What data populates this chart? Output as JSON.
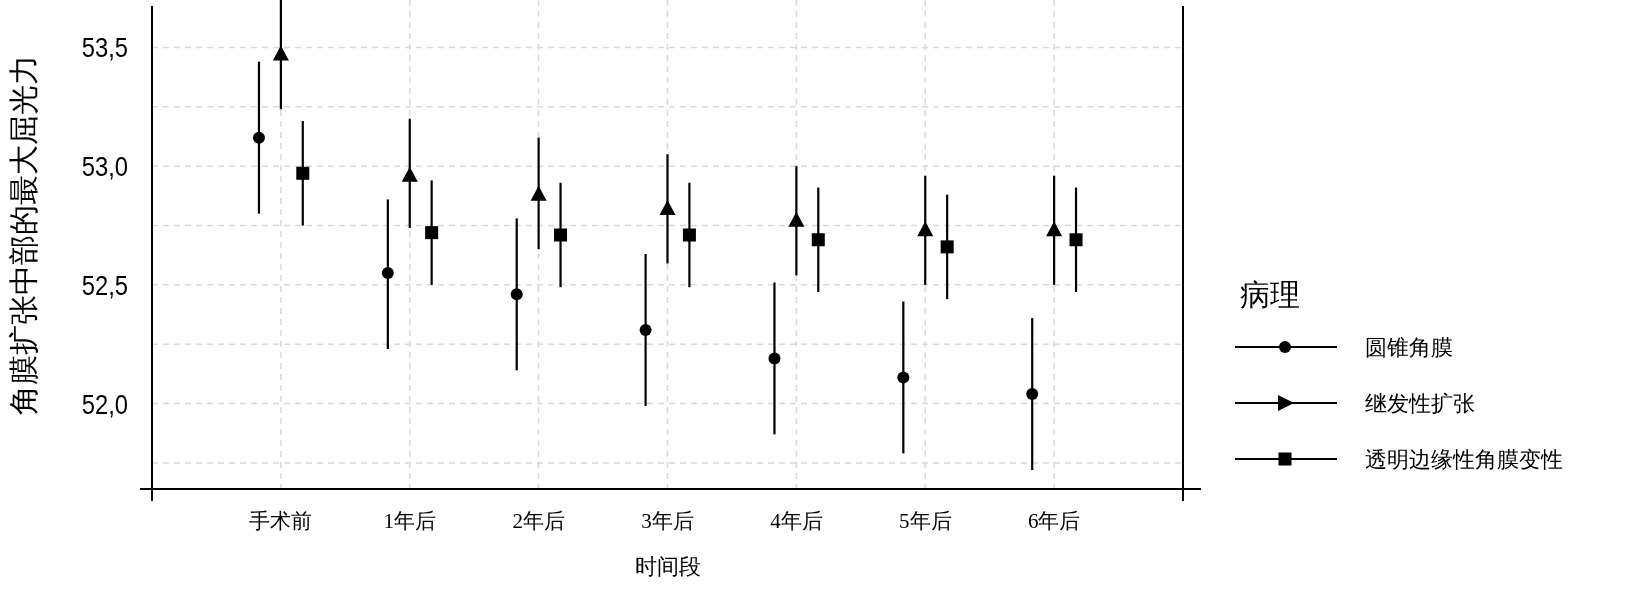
{
  "chart_data": {
    "type": "scatter",
    "xlabel": "时间段",
    "ylabel": "角膜扩张中部的最大屈光力",
    "legend_title": "病理",
    "legend": "right",
    "grid": true,
    "categories": [
      "手术前",
      "1年后",
      "2年后",
      "3年后",
      "4年后",
      "5年后",
      "6年后"
    ],
    "ylim": [
      51.64,
      53.7
    ],
    "yticks": [
      {
        "value": 51.75,
        "label": null
      },
      {
        "value": 52.0,
        "label": "52,0"
      },
      {
        "value": 52.25,
        "label": null
      },
      {
        "value": 52.5,
        "label": "52,5"
      },
      {
        "value": 52.75,
        "label": null
      },
      {
        "value": 53.0,
        "label": "53,0"
      },
      {
        "value": 53.25,
        "label": null
      },
      {
        "value": 53.5,
        "label": "53,5"
      }
    ],
    "series": [
      {
        "name": "圆锥角膜",
        "color": "#000000",
        "marker": "circle",
        "values": [
          53.12,
          52.55,
          52.46,
          52.31,
          52.19,
          52.11,
          52.04
        ],
        "errors": [
          [
            52.8,
            53.44
          ],
          [
            52.23,
            52.86
          ],
          [
            52.14,
            52.78
          ],
          [
            51.99,
            52.63
          ],
          [
            51.87,
            52.51
          ],
          [
            51.79,
            52.43
          ],
          [
            51.72,
            52.36
          ]
        ]
      },
      {
        "name": "继发性扩张",
        "color": "#000000",
        "marker": "triangle",
        "values": [
          53.47,
          52.96,
          52.88,
          52.82,
          52.77,
          52.73,
          52.73
        ],
        "errors": [
          [
            53.24,
            53.7
          ],
          [
            52.74,
            53.2
          ],
          [
            52.65,
            53.12
          ],
          [
            52.59,
            53.05
          ],
          [
            52.54,
            53.0
          ],
          [
            52.5,
            52.96
          ],
          [
            52.5,
            52.96
          ]
        ]
      },
      {
        "name": "透明边缘性角膜变性",
        "color": "#000000",
        "marker": "square",
        "values": [
          52.97,
          52.72,
          52.71,
          52.71,
          52.69,
          52.66,
          52.69
        ],
        "errors": [
          [
            52.75,
            53.19
          ],
          [
            52.5,
            52.94
          ],
          [
            52.49,
            52.93
          ],
          [
            52.49,
            52.93
          ],
          [
            52.47,
            52.91
          ],
          [
            52.44,
            52.88
          ],
          [
            52.47,
            52.91
          ]
        ]
      }
    ]
  }
}
